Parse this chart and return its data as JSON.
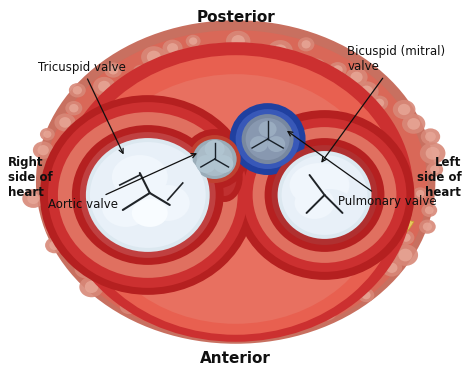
{
  "title_top": "Posterior",
  "title_bottom": "Anterior",
  "label_right_side": "Right\nside of\nheart",
  "label_left_side": "Left\nside of\nheart",
  "label_tricuspid": "Tricuspid valve",
  "label_bicuspid": "Bicuspid (mitral)\nvalve",
  "label_aortic": "Aortic valve",
  "label_pulmonary": "Pulmonary valve",
  "bg_color": "#ffffff",
  "heart_dark_red": "#b52020",
  "heart_mid_red": "#cc3030",
  "heart_light_red": "#e86050",
  "heart_salmon": "#e8907a",
  "fat_yellow": "#e8c860",
  "fat_light": "#f0d878",
  "fat_dark": "#c8a030",
  "fat_tissue": "#deba50",
  "valve_white1": "#dce8f0",
  "valve_white2": "#e8f0f8",
  "valve_highlight": "#f0f6fc",
  "valve_shadow": "#a0b8c8",
  "valve_dark_line": "#202428",
  "aortic_gray": "#8a9eaa",
  "pulm_blue_ring": "#2040a0",
  "pulm_blue_fill": "#3858b8",
  "pulm_valve_gray": "#7888a0",
  "annot_fontsize": 8.5,
  "title_fontsize": 11,
  "side_fontsize": 8.5
}
